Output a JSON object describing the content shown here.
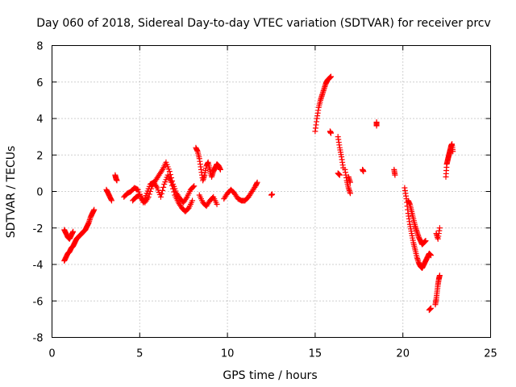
{
  "chart_data": {
    "type": "scatter",
    "title": "Day 060 of 2018, Sidereal Day-to-day VTEC variation (SDTVAR) for receiver prcv",
    "xlabel": "GPS time / hours",
    "ylabel": "SDTVAR / TECUs",
    "xlim": [
      0,
      25
    ],
    "ylim": [
      -8,
      8
    ],
    "xticks": [
      "0",
      "5",
      "10",
      "15",
      "20",
      "25"
    ],
    "yticks": [
      "-8",
      "-6",
      "-4",
      "-2",
      "0",
      "2",
      "4",
      "6",
      "8"
    ],
    "grid": true,
    "marker": "plus",
    "marker_color": "#ff0000",
    "series_segments": [
      {
        "x": [
          0.7,
          0.8,
          0.9,
          1.0,
          1.1,
          1.2
        ],
        "y": [
          -2.1,
          -2.3,
          -2.5,
          -2.6,
          -2.4,
          -2.2
        ]
      },
      {
        "x": [
          0.7,
          0.8,
          0.9,
          1.0,
          1.1,
          1.2,
          1.3,
          1.4,
          1.5,
          1.6,
          1.7,
          1.8,
          1.9,
          2.0,
          2.1,
          2.2,
          2.3,
          2.4
        ],
        "y": [
          -3.8,
          -3.6,
          -3.4,
          -3.3,
          -3.1,
          -3.0,
          -2.8,
          -2.6,
          -2.5,
          -2.4,
          -2.3,
          -2.2,
          -2.1,
          -1.9,
          -1.7,
          -1.4,
          -1.2,
          -1.0
        ]
      },
      {
        "x": [
          3.1,
          3.2,
          3.3,
          3.4
        ],
        "y": [
          0.1,
          -0.1,
          -0.3,
          -0.5
        ]
      },
      {
        "x": [
          3.6,
          3.65,
          3.7
        ],
        "y": [
          0.9,
          0.7,
          0.6
        ]
      },
      {
        "x": [
          4.1,
          4.3,
          4.5,
          4.7,
          4.9,
          5.1,
          5.3,
          5.5,
          5.7,
          5.9,
          6.1,
          6.3,
          6.5,
          6.7,
          6.9,
          7.1,
          7.3,
          7.5,
          7.7,
          7.9,
          8.1
        ],
        "y": [
          -0.3,
          -0.1,
          0.0,
          0.2,
          0.1,
          -0.4,
          -0.6,
          -0.3,
          0.3,
          0.6,
          0.9,
          1.2,
          1.6,
          1.1,
          0.4,
          -0.1,
          -0.4,
          -0.6,
          -0.3,
          0.1,
          0.3
        ]
      },
      {
        "x": [
          4.6,
          4.8,
          5.0,
          5.2,
          5.4,
          5.6,
          5.8,
          6.0,
          6.2,
          6.4,
          6.6,
          6.8,
          7.0,
          7.2,
          7.4,
          7.6,
          7.8,
          8.0
        ],
        "y": [
          -0.5,
          -0.3,
          -0.2,
          -0.6,
          -0.1,
          0.4,
          0.5,
          0.2,
          -0.3,
          0.4,
          0.9,
          0.5,
          -0.2,
          -0.6,
          -0.9,
          -1.1,
          -0.9,
          -0.5
        ]
      },
      {
        "x": [
          8.2,
          8.3,
          8.4,
          8.5,
          8.6,
          8.7,
          8.8,
          8.9,
          9.0,
          9.1,
          9.2,
          9.3,
          9.4,
          9.5,
          9.6
        ],
        "y": [
          2.4,
          2.2,
          1.8,
          1.2,
          0.6,
          0.9,
          1.4,
          1.6,
          1.2,
          0.8,
          1.1,
          1.3,
          1.5,
          1.4,
          1.2
        ]
      },
      {
        "x": [
          8.4,
          8.6,
          8.8,
          9.0,
          9.2,
          9.4
        ],
        "y": [
          -0.2,
          -0.6,
          -0.8,
          -0.5,
          -0.3,
          -0.7
        ]
      },
      {
        "x": [
          9.8,
          10.0,
          10.2,
          10.4,
          10.6,
          10.8,
          11.0,
          11.2,
          11.4,
          11.6,
          11.7
        ],
        "y": [
          -0.4,
          -0.1,
          0.1,
          -0.1,
          -0.4,
          -0.5,
          -0.5,
          -0.3,
          0.0,
          0.3,
          0.5
        ]
      },
      {
        "x": [
          12.5,
          12.55
        ],
        "y": [
          -0.2,
          -0.15
        ]
      },
      {
        "x": [
          15.0,
          15.1,
          15.2,
          15.3,
          15.4,
          15.5,
          15.6,
          15.7,
          15.8,
          15.9
        ],
        "y": [
          3.3,
          4.0,
          4.6,
          5.0,
          5.3,
          5.6,
          5.9,
          6.1,
          6.2,
          6.3
        ]
      },
      {
        "x": [
          15.85,
          15.9
        ],
        "y": [
          3.3,
          3.2
        ]
      },
      {
        "x": [
          16.3,
          16.4,
          16.5,
          16.6
        ],
        "y": [
          3.0,
          2.4,
          1.9,
          1.3
        ]
      },
      {
        "x": [
          16.3,
          16.4
        ],
        "y": [
          1.0,
          0.9
        ]
      },
      {
        "x": [
          16.7,
          16.8,
          16.9,
          17.0
        ],
        "y": [
          1.2,
          0.6,
          0.2,
          -0.1
        ]
      },
      {
        "x": [
          17.0,
          16.9
        ],
        "y": [
          0.5,
          0.8
        ]
      },
      {
        "x": [
          17.7,
          17.75
        ],
        "y": [
          1.2,
          1.1
        ]
      },
      {
        "x": [
          18.5,
          18.5
        ],
        "y": [
          3.8,
          3.6
        ]
      },
      {
        "x": [
          19.5,
          19.55
        ],
        "y": [
          1.2,
          0.9
        ]
      },
      {
        "x": [
          20.1,
          20.2,
          20.3,
          20.4,
          20.5,
          20.6,
          20.7,
          20.8,
          20.9,
          21.0,
          21.1,
          21.2,
          21.3,
          21.4,
          21.5,
          21.6
        ],
        "y": [
          0.2,
          -0.4,
          -1.2,
          -1.8,
          -2.3,
          -2.8,
          -3.2,
          -3.6,
          -3.9,
          -4.1,
          -4.2,
          -4.0,
          -3.8,
          -3.6,
          -3.4,
          -3.5
        ]
      },
      {
        "x": [
          20.3,
          20.4,
          20.5,
          20.6,
          20.7,
          20.8,
          20.9,
          21.0,
          21.1,
          21.2,
          21.3
        ],
        "y": [
          -0.5,
          -0.7,
          -1.1,
          -1.5,
          -1.9,
          -2.2,
          -2.5,
          -2.7,
          -2.9,
          -2.8,
          -2.7
        ]
      },
      {
        "x": [
          21.5,
          21.6
        ],
        "y": [
          -6.5,
          -6.4
        ]
      },
      {
        "x": [
          21.85,
          21.9,
          21.95,
          22.0,
          22.05,
          22.1
        ],
        "y": [
          -6.2,
          -5.9,
          -5.5,
          -5.1,
          -4.8,
          -4.6
        ]
      },
      {
        "x": [
          21.9,
          22.0,
          22.1
        ],
        "y": [
          -2.3,
          -2.6,
          -2.0
        ]
      },
      {
        "x": [
          22.45,
          22.5,
          22.55,
          22.6,
          22.65,
          22.7,
          22.75,
          22.8,
          22.85
        ],
        "y": [
          0.8,
          1.5,
          1.7,
          1.9,
          2.1,
          2.3,
          2.5,
          2.6,
          2.2
        ]
      }
    ]
  }
}
